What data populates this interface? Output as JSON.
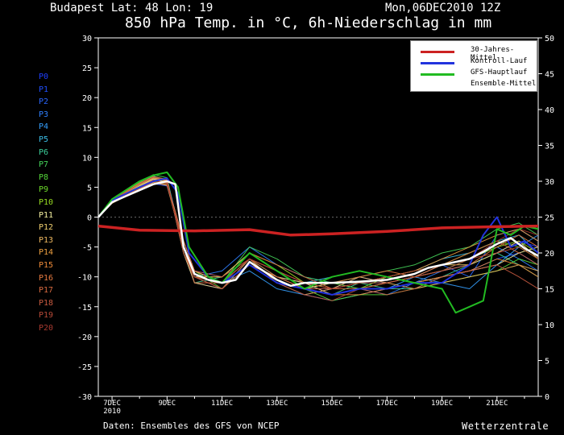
{
  "header": {
    "location": "Budapest  Lat: 48 Lon: 19",
    "date": "Mon,06DEC2010 12Z",
    "title": "850 hPa Temp. in °C, 6h-Niederschlag in mm"
  },
  "footer": {
    "source": "Daten: Ensembles des GFS von NCEP",
    "brand": "Wetterzentrale"
  },
  "members": [
    {
      "label": "P0",
      "color": "#1f3fff"
    },
    {
      "label": "P1",
      "color": "#2050ff"
    },
    {
      "label": "P2",
      "color": "#2a66ff"
    },
    {
      "label": "P3",
      "color": "#2f80ff"
    },
    {
      "label": "P4",
      "color": "#35a0ff"
    },
    {
      "label": "P5",
      "color": "#3bbde6"
    },
    {
      "label": "P6",
      "color": "#3ccf9a"
    },
    {
      "label": "P7",
      "color": "#45d45a"
    },
    {
      "label": "P8",
      "color": "#55d83a"
    },
    {
      "label": "P9",
      "color": "#6ddb2a"
    },
    {
      "label": "P10",
      "color": "#98dd22"
    },
    {
      "label": "P11",
      "color": "#f5f0a0"
    },
    {
      "label": "P12",
      "color": "#f1d070"
    },
    {
      "label": "P13",
      "color": "#eeb860"
    },
    {
      "label": "P14",
      "color": "#eea040"
    },
    {
      "label": "P15",
      "color": "#ee8a38"
    },
    {
      "label": "P16",
      "color": "#e67a40"
    },
    {
      "label": "P17",
      "color": "#d86a40"
    },
    {
      "label": "P18",
      "color": "#c85a40"
    },
    {
      "label": "P19",
      "color": "#b84a38"
    },
    {
      "label": "P20",
      "color": "#a83a30"
    }
  ],
  "legend": [
    {
      "label": "30-Jahres-Mittel",
      "color": "#cc2222"
    },
    {
      "label": "Kontroll-Lauf",
      "color": "#2233dd"
    },
    {
      "label": "GFS-Hauptlauf",
      "color": "#22bb22"
    },
    {
      "label": "Ensemble-Mittel",
      "color": "#ffffff"
    }
  ],
  "chart_data": {
    "type": "line",
    "x_ticks": [
      "7DEC\n2010",
      "9DEC",
      "11DEC",
      "13DEC",
      "15DEC",
      "17DEC",
      "19DEC",
      "21DEC"
    ],
    "x_range_days": [
      6.5,
      22.5
    ],
    "y_left_ticks": [
      30,
      25,
      20,
      15,
      10,
      5,
      0,
      -5,
      -10,
      -15,
      -20,
      -25,
      -30
    ],
    "y_right_ticks": [
      50,
      45,
      40,
      35,
      30,
      25,
      20,
      15,
      10,
      5,
      0
    ],
    "ylim_left": [
      -30,
      30
    ],
    "ylim_right": [
      0,
      50
    ],
    "climatology": {
      "x": [
        6.5,
        8,
        10,
        12,
        13.5,
        15,
        17,
        19,
        21,
        22.5
      ],
      "y": [
        -1.5,
        -2.2,
        -2.3,
        -2.1,
        -3,
        -2.8,
        -2.4,
        -1.8,
        -1.6,
        -1.5
      ]
    },
    "ensemble_mean": {
      "x": [
        6.5,
        7,
        7.5,
        8,
        8.5,
        9,
        9.3,
        9.6,
        10,
        10.5,
        11,
        11.5,
        12,
        12.5,
        13,
        13.5,
        14,
        15,
        16,
        17,
        18,
        18.5,
        19,
        20,
        20.5,
        21,
        21.5,
        22,
        22.5
      ],
      "y": [
        0,
        2.5,
        3.5,
        4.5,
        5.5,
        6,
        5.5,
        -5,
        -9.5,
        -10.5,
        -11,
        -10.5,
        -7.5,
        -9,
        -10.5,
        -11.5,
        -11,
        -11,
        -10.8,
        -10.5,
        -9.5,
        -8.5,
        -8,
        -7,
        -5.8,
        -4.5,
        -3.5,
        -5.2,
        -6.5
      ]
    },
    "control_run": {
      "x": [
        6.5,
        7,
        8,
        8.5,
        9,
        9.4,
        9.8,
        10.5,
        11,
        12,
        13,
        14,
        15,
        16,
        17,
        18,
        19,
        20,
        20.5,
        21,
        21.5,
        22,
        22.5
      ],
      "y": [
        0,
        2.8,
        5,
        6,
        6.5,
        4,
        -6,
        -10,
        -11,
        -8,
        -11,
        -12,
        -13,
        -12,
        -12,
        -11,
        -11,
        -8,
        -3,
        0,
        -5,
        -4,
        -6
      ]
    },
    "gfs_main_run": {
      "x": [
        6.5,
        7,
        8,
        8.5,
        9,
        9.4,
        9.8,
        10.5,
        11,
        12,
        13,
        14,
        15,
        16,
        17,
        18,
        19,
        19.5,
        20,
        20.5,
        21,
        21.5,
        22,
        22.5
      ],
      "y": [
        0,
        3,
        6,
        7,
        7.5,
        5,
        -5,
        -10,
        -11,
        -6,
        -9,
        -12,
        -10,
        -9,
        -10,
        -11,
        -12,
        -16,
        -15,
        -14,
        -2,
        -3,
        -1.5,
        -2
      ]
    },
    "members_series": [
      {
        "name": "P0",
        "y": [
          0,
          2.6,
          5.2,
          6.2,
          5.8,
          -5,
          -10,
          -11,
          -7,
          -10,
          -12,
          -12,
          -11,
          -11,
          -10,
          -9,
          -8,
          -6,
          -4,
          -5
        ]
      },
      {
        "name": "P1",
        "y": [
          0,
          2.4,
          4.8,
          5.6,
          5.2,
          -4,
          -9,
          -10,
          -6,
          -9,
          -11,
          -13,
          -12,
          -12,
          -11,
          -10,
          -9,
          -7,
          -6,
          -8
        ]
      },
      {
        "name": "P2",
        "y": [
          0,
          2.7,
          5.4,
          6.8,
          6.2,
          -6,
          -11,
          -12,
          -8,
          -11,
          -13,
          -12,
          -10,
          -11,
          -10,
          -8,
          -10,
          -3,
          -2,
          -4
        ]
      },
      {
        "name": "P3",
        "y": [
          0,
          2.9,
          5,
          6.4,
          6.5,
          -5,
          -10,
          -9,
          -5,
          -8,
          -10,
          -11,
          -12,
          -13,
          -11,
          -9,
          -7,
          -5,
          -7,
          -9
        ]
      },
      {
        "name": "P4",
        "y": [
          0,
          2.5,
          4.6,
          5.9,
          5.4,
          -4,
          -9,
          -11,
          -9,
          -12,
          -13,
          -14,
          -13,
          -12,
          -10,
          -11,
          -12,
          -8,
          -5,
          -3
        ]
      },
      {
        "name": "P5",
        "y": [
          0,
          2.8,
          5.6,
          6.9,
          6.1,
          -6,
          -10,
          -12,
          -7,
          -10,
          -11,
          -10,
          -9,
          -10,
          -9,
          -7,
          -6,
          -4,
          -3,
          -6
        ]
      },
      {
        "name": "P6",
        "y": [
          0,
          2.6,
          5.1,
          6.3,
          5.9,
          -5,
          -11,
          -10,
          -6,
          -9,
          -12,
          -13,
          -11,
          -12,
          -12,
          -10,
          -8,
          -6,
          -8,
          -10
        ]
      },
      {
        "name": "P7",
        "y": [
          0,
          3,
          5.8,
          7.1,
          6.6,
          -6,
          -10,
          -11,
          -5,
          -7,
          -10,
          -11,
          -10,
          -9,
          -8,
          -6,
          -5,
          -2,
          -1,
          -3
        ]
      },
      {
        "name": "P8",
        "y": [
          0,
          2.4,
          4.9,
          6,
          5.5,
          -4,
          -9,
          -12,
          -8,
          -11,
          -12,
          -14,
          -13,
          -13,
          -12,
          -11,
          -10,
          -9,
          -7,
          -8
        ]
      },
      {
        "name": "P9",
        "y": [
          0,
          2.7,
          5.3,
          6.5,
          6,
          -5,
          -10,
          -11,
          -7,
          -10,
          -12,
          -11,
          -12,
          -10,
          -9,
          -8,
          -6,
          -4,
          -5,
          -7
        ]
      },
      {
        "name": "P10",
        "y": [
          0,
          2.5,
          5,
          6.1,
          5.7,
          -5,
          -10,
          -10,
          -6,
          -8,
          -11,
          -12,
          -12,
          -11,
          -10,
          -9,
          -7,
          -5,
          -4,
          -6
        ]
      },
      {
        "name": "P11",
        "y": [
          0,
          2.6,
          5.2,
          6.4,
          5.8,
          -4,
          -9,
          -11,
          -7,
          -9,
          -12,
          -11,
          -11,
          -10,
          -11,
          -10,
          -9,
          -8,
          -6,
          -5
        ]
      },
      {
        "name": "P12",
        "y": [
          0,
          2.8,
          5.5,
          6.6,
          6.1,
          -6,
          -11,
          -12,
          -8,
          -10,
          -11,
          -13,
          -12,
          -11,
          -10,
          -8,
          -8,
          -6,
          -4,
          -7
        ]
      },
      {
        "name": "P13",
        "y": [
          0,
          2.3,
          4.7,
          5.8,
          5.3,
          -5,
          -10,
          -10,
          -6,
          -9,
          -11,
          -12,
          -10,
          -11,
          -12,
          -11,
          -10,
          -9,
          -8,
          -9
        ]
      },
      {
        "name": "P14",
        "y": [
          0,
          2.9,
          5.7,
          6.8,
          6.3,
          -6,
          -10,
          -11,
          -7,
          -11,
          -13,
          -12,
          -11,
          -10,
          -9,
          -7,
          -5,
          -3,
          -2,
          -4
        ]
      },
      {
        "name": "P15",
        "y": [
          0,
          2.5,
          5,
          6.2,
          5.6,
          -4,
          -9,
          -11,
          -8,
          -10,
          -12,
          -13,
          -13,
          -12,
          -11,
          -10,
          -9,
          -7,
          -8,
          -10
        ]
      },
      {
        "name": "P16",
        "y": [
          0,
          2.7,
          5.4,
          6.5,
          6,
          -5,
          -10,
          -12,
          -7,
          -9,
          -11,
          -11,
          -10,
          -9,
          -10,
          -9,
          -8,
          -5,
          -3,
          -5
        ]
      },
      {
        "name": "P17",
        "y": [
          0,
          2.6,
          5.1,
          6.2,
          5.7,
          -5,
          -11,
          -11,
          -6,
          -8,
          -10,
          -12,
          -11,
          -11,
          -10,
          -8,
          -6,
          -4,
          -6,
          -8
        ]
      },
      {
        "name": "P18",
        "y": [
          0,
          2.4,
          4.8,
          5.9,
          5.4,
          -4,
          -9,
          -10,
          -7,
          -10,
          -12,
          -12,
          -12,
          -13,
          -12,
          -10,
          -9,
          -8,
          -10,
          -12
        ]
      },
      {
        "name": "P19",
        "y": [
          0,
          2.8,
          5.6,
          6.7,
          6.2,
          -6,
          -10,
          -12,
          -8,
          -11,
          -13,
          -14,
          -12,
          -11,
          -10,
          -9,
          -7,
          -6,
          -5,
          -7
        ]
      },
      {
        "name": "P20",
        "y": [
          0,
          2.5,
          5,
          6.1,
          5.6,
          -5,
          -10,
          -11,
          -7,
          -9,
          -11,
          -12,
          -11,
          -10,
          -9,
          -8,
          -7,
          -4,
          -2,
          -3
        ]
      }
    ],
    "members_x": [
      6.5,
      7,
      8,
      8.5,
      9,
      9.6,
      10,
      11,
      12,
      13,
      14,
      15,
      16,
      17,
      18,
      19,
      20,
      21,
      21.8,
      22.5
    ]
  }
}
